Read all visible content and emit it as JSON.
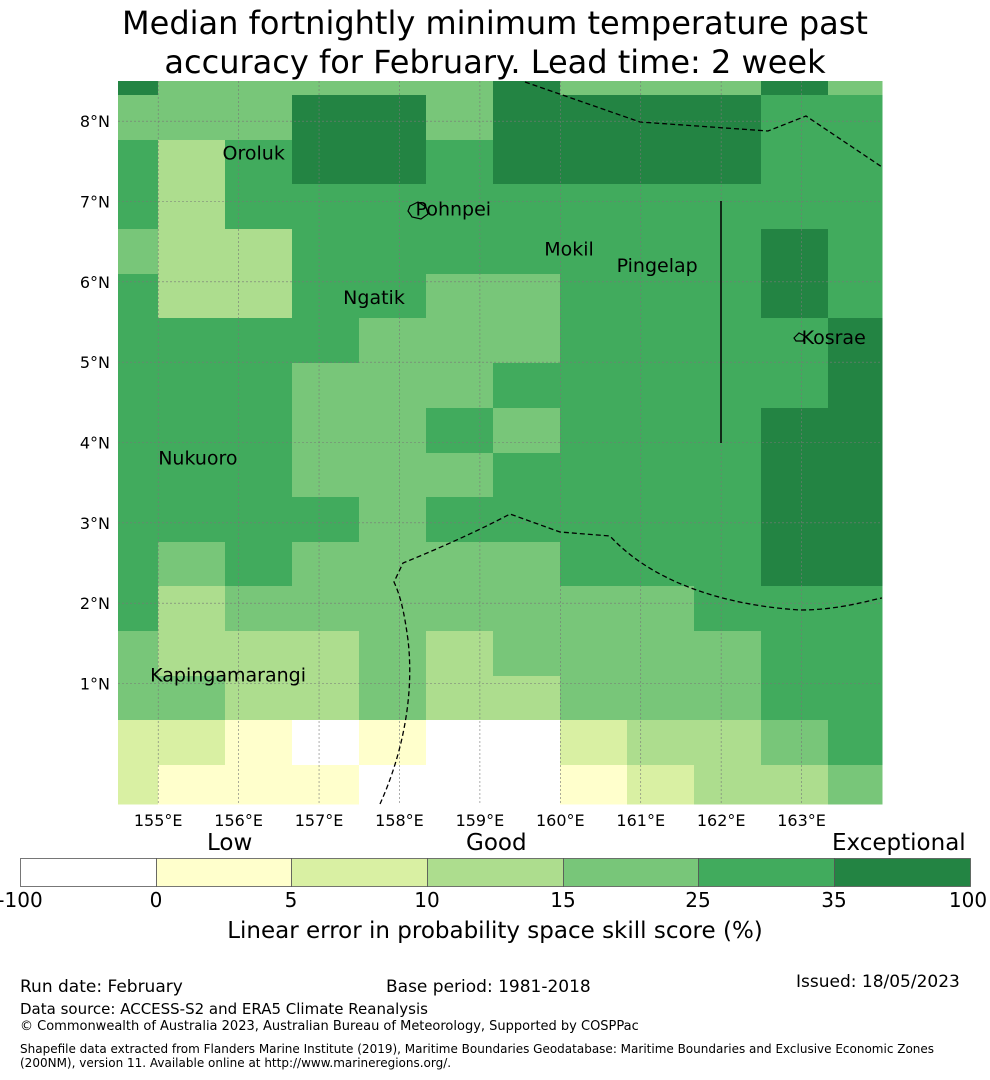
{
  "title_line1": "Median fortnightly minimum temperature past",
  "title_line2": "accuracy for February. Lead time: 2 week",
  "map": {
    "lat_labels": [
      "8°N",
      "7°N",
      "6°N",
      "5°N",
      "4°N",
      "3°N",
      "2°N",
      "1°N"
    ],
    "lat_values": [
      8,
      7,
      6,
      5,
      4,
      3,
      2,
      1
    ],
    "lon_labels": [
      "155°E",
      "156°E",
      "157°E",
      "158°E",
      "159°E",
      "160°E",
      "161°E",
      "162°E",
      "163°E"
    ],
    "lon_values": [
      155,
      156,
      157,
      158,
      159,
      160,
      161,
      162,
      163
    ],
    "extent": {
      "lon_min": 154.5,
      "lon_max": 164.0,
      "lat_min": -0.5,
      "lat_max": 8.5
    },
    "places": [
      {
        "name": "Oroluk",
        "lon": 155.8,
        "lat": 7.6
      },
      {
        "name": "Pohnpei",
        "lon": 158.2,
        "lat": 6.9
      },
      {
        "name": "Mokil",
        "lon": 159.8,
        "lat": 6.4
      },
      {
        "name": "Pingelap",
        "lon": 160.7,
        "lat": 6.2
      },
      {
        "name": "Ngatik",
        "lon": 157.3,
        "lat": 5.8
      },
      {
        "name": "Kosrae",
        "lon": 163.0,
        "lat": 5.3
      },
      {
        "name": "Nukuoro",
        "lon": 155.0,
        "lat": 3.8
      },
      {
        "name": "Kapingamarangi",
        "lon": 154.9,
        "lat": 1.1
      }
    ]
  },
  "legend": {
    "category_low": "Low",
    "category_good": "Good",
    "category_exceptional": "Exceptional",
    "ticks": [
      "-100",
      "0",
      "5",
      "10",
      "15",
      "25",
      "35",
      "100"
    ],
    "colors": [
      "#ffffff",
      "#ffffcc",
      "#d9f0a3",
      "#addd8e",
      "#78c679",
      "#41ab5d",
      "#238443"
    ],
    "label": "Linear error in probability space skill score (%)"
  },
  "footer": {
    "run_date": "Run date: February",
    "base_period": "Base period: 1981-2018",
    "issued": "Issued: 18/05/2023",
    "data_source": "Data source: ACCESS-S2 and ERA5 Climate Reanalysis",
    "copyright": "© Commonwealth of Australia 2023, Australian Bureau of Meteorology, Supported by COSPPac",
    "shapefile": "Shapefile data extracted from Flanders Marine Institute (2019), Maritime Boundaries Geodatabase: Maritime Boundaries and Exclusive Economic Zones (200NM), version 11. Available online at http://www.marineregions.org/."
  }
}
